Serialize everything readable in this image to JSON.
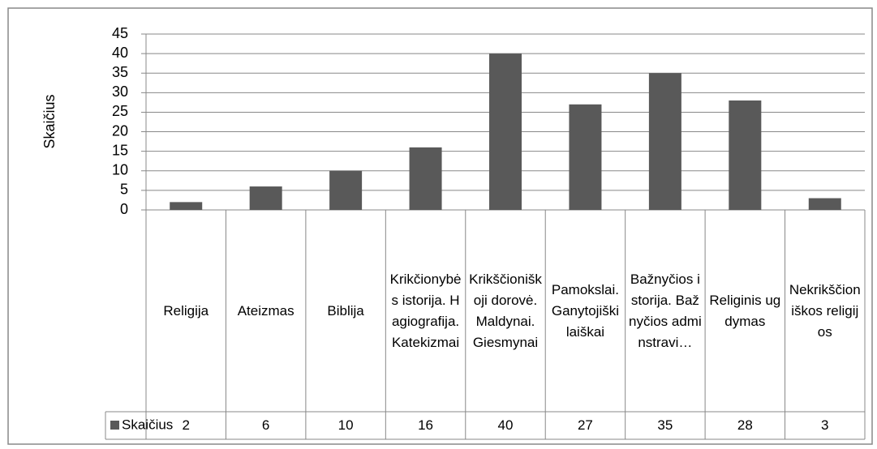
{
  "chart_data": {
    "type": "bar",
    "y_label": "Skaičius",
    "categories": [
      "Religija",
      "Ateizmas",
      "Biblija",
      "Krikčionybės istorija. Hagiografija. Katekizmai",
      "Krikščioniškoji dorovė. Maldynai. Giesmynai",
      "Pamokslai. Ganytojiški laiškai",
      "Bažnyčios istorija. Bažnyčios adminstravi…",
      "Religinis ugdymas",
      "Nekrikščioniškos religijos"
    ],
    "series": [
      {
        "name": "Skaičius",
        "color": "#595959",
        "values": [
          2,
          6,
          10,
          16,
          40,
          27,
          35,
          28,
          3
        ]
      }
    ],
    "ylim": [
      0,
      45
    ],
    "yticks": [
      0,
      5,
      10,
      15,
      20,
      25,
      30,
      35,
      40,
      45
    ],
    "grid": true,
    "data_table": true
  }
}
